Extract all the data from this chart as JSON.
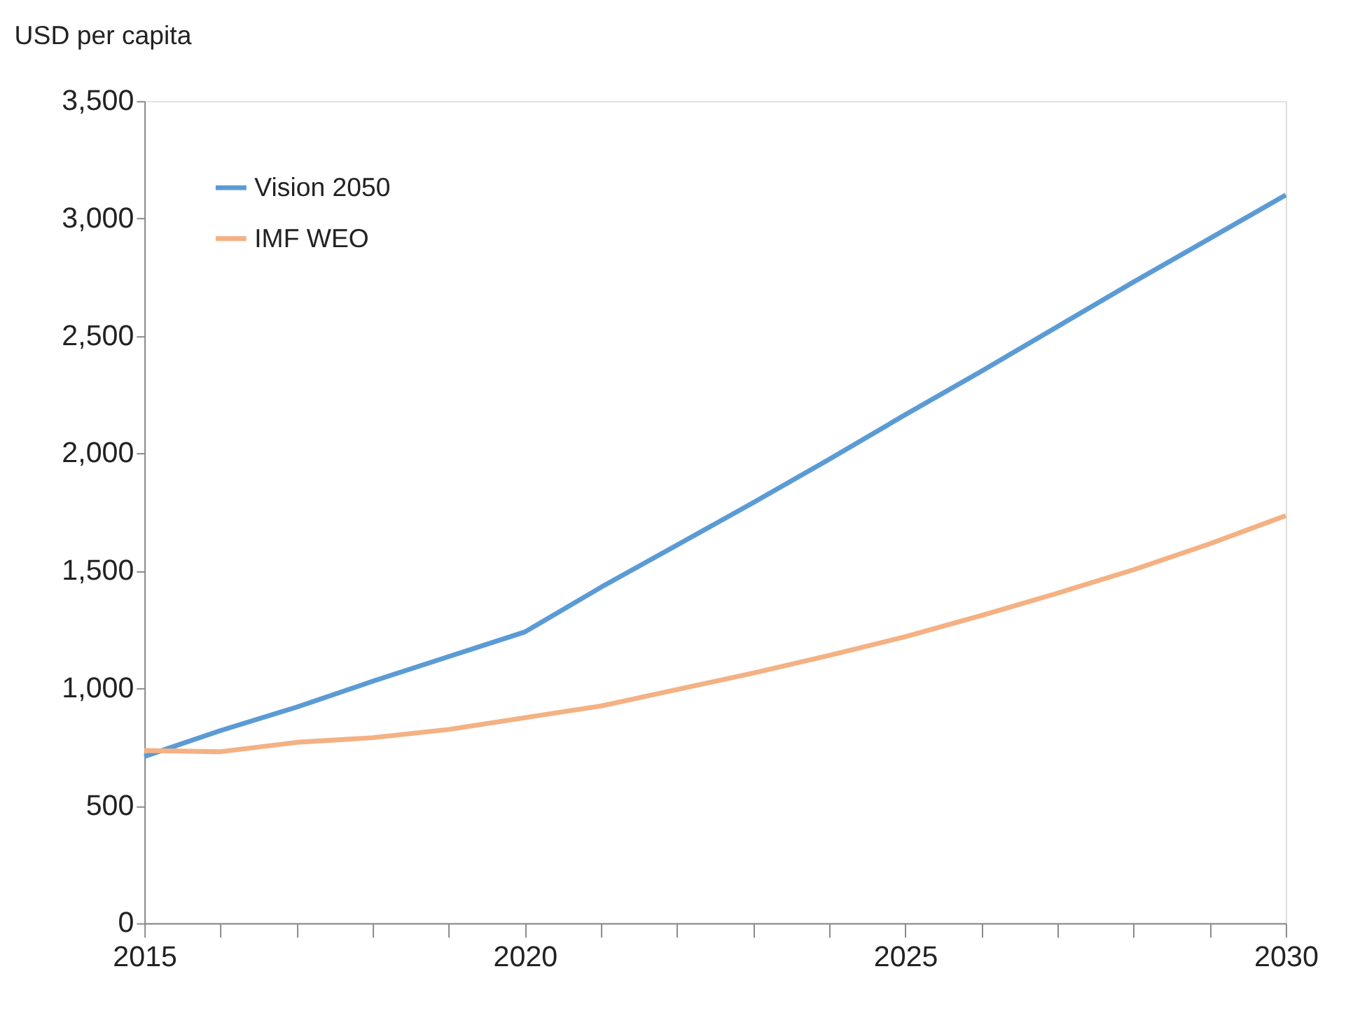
{
  "chart_data": {
    "type": "line",
    "ylabel": "USD per capita",
    "x": [
      2015,
      2016,
      2017,
      2018,
      2019,
      2020,
      2021,
      2022,
      2023,
      2024,
      2025,
      2026,
      2027,
      2028,
      2029,
      2030
    ],
    "series": [
      {
        "name": "Vision 2050",
        "color": "#5b9bd5",
        "values": [
          710,
          820,
          920,
          1030,
          1135,
          1240,
          1430,
          1610,
          1790,
          1975,
          2165,
          2350,
          2540,
          2730,
          2915,
          3100
        ]
      },
      {
        "name": "IMF WEO",
        "color": "#f4b183",
        "values": [
          735,
          730,
          770,
          790,
          825,
          875,
          925,
          995,
          1065,
          1140,
          1220,
          1310,
          1405,
          1505,
          1615,
          1735
        ]
      }
    ],
    "xlim": [
      2015,
      2030
    ],
    "xticks": [
      2015,
      {
        "value": 2016,
        "label": null
      },
      {
        "value": 2017,
        "label": null
      },
      {
        "value": 2018,
        "label": null
      },
      {
        "value": 2019,
        "label": null
      },
      2020,
      {
        "value": 2021,
        "label": null
      },
      {
        "value": 2022,
        "label": null
      },
      {
        "value": 2023,
        "label": null
      },
      {
        "value": 2024,
        "label": null
      },
      2025,
      {
        "value": 2026,
        "label": null
      },
      {
        "value": 2027,
        "label": null
      },
      {
        "value": 2028,
        "label": null
      },
      {
        "value": 2029,
        "label": null
      },
      2030
    ],
    "ylim": [
      0,
      3500
    ],
    "yticks": [
      0,
      500,
      {
        "value": 1000,
        "label": "1,000"
      },
      {
        "value": 1500,
        "label": "1,500"
      },
      {
        "value": 2000,
        "label": "2,000"
      },
      {
        "value": 2500,
        "label": "2,500"
      },
      {
        "value": 3000,
        "label": "3,000"
      },
      {
        "value": 3500,
        "label": "3,500"
      }
    ],
    "grid": false,
    "legend": "top left",
    "marker": "none",
    "line_style": "solid"
  }
}
